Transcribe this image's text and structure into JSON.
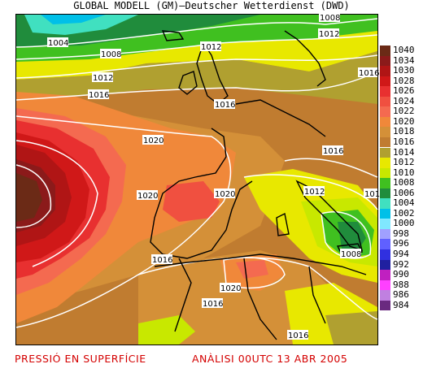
{
  "header": {
    "title": "GLOBAL MODELL (GM)—Deutscher Wetterdienst (DWD)"
  },
  "footer": {
    "left": "PRESSIÓ EN SUPERFÍCIE",
    "right": "ANÀLISI 00UTC 13 ABR 2005"
  },
  "legend": {
    "items": [
      {
        "value": "1040",
        "color": "#6b2a16"
      },
      {
        "value": "1034",
        "color": "#8b1a1a"
      },
      {
        "value": "1030",
        "color": "#b01515"
      },
      {
        "value": "1028",
        "color": "#d01818"
      },
      {
        "value": "1026",
        "color": "#e83030"
      },
      {
        "value": "1024",
        "color": "#f05040"
      },
      {
        "value": "1022",
        "color": "#f46a50"
      },
      {
        "value": "1020",
        "color": "#f0883a"
      },
      {
        "value": "1018",
        "color": "#d49038"
      },
      {
        "value": "1016",
        "color": "#c07c30"
      },
      {
        "value": "1014",
        "color": "#b0a030"
      },
      {
        "value": "1012",
        "color": "#e8e800"
      },
      {
        "value": "1010",
        "color": "#c8e800"
      },
      {
        "value": "1008",
        "color": "#40c020"
      },
      {
        "value": "1006",
        "color": "#208c3c"
      },
      {
        "value": "1004",
        "color": "#40e0c0"
      },
      {
        "value": "1002",
        "color": "#00c0e8"
      },
      {
        "value": "1000",
        "color": "#80e8ff"
      },
      {
        "value": "998",
        "color": "#a0a0ff"
      },
      {
        "value": "996",
        "color": "#6060ff"
      },
      {
        "value": "994",
        "color": "#3030e0"
      },
      {
        "value": "992",
        "color": "#2020a0"
      },
      {
        "value": "990",
        "color": "#c020c0"
      },
      {
        "value": "988",
        "color": "#ff40ff"
      },
      {
        "value": "986",
        "color": "#c080e0"
      },
      {
        "value": "984",
        "color": "#6a2a80"
      }
    ]
  },
  "isobar_labels": [
    {
      "text": "1004"
    },
    {
      "text": "1008"
    },
    {
      "text": "1012"
    },
    {
      "text": "1016"
    },
    {
      "text": "1012"
    },
    {
      "text": "1016"
    },
    {
      "text": "1020"
    },
    {
      "text": "1020"
    },
    {
      "text": "1020"
    },
    {
      "text": "1016"
    },
    {
      "text": "1016"
    },
    {
      "text": "1012"
    },
    {
      "text": "1008"
    },
    {
      "text": "1016"
    },
    {
      "text": "1020"
    },
    {
      "text": "1016"
    },
    {
      "text": "1016"
    },
    {
      "text": "1008"
    },
    {
      "text": "1012"
    },
    {
      "text": "1016"
    },
    {
      "text": "101"
    }
  ]
}
